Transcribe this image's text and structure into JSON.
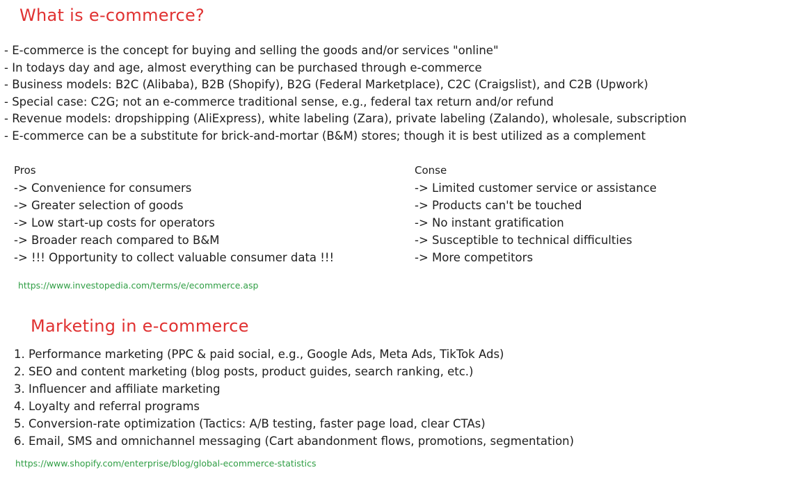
{
  "section1": {
    "title": "What is e-commerce?",
    "bullets": [
      "- E-commerce is the concept for buying and selling the goods and/or services \"online\"",
      "- In todays day and age, almost everything can be purchased through e-commerce",
      "- Business models: B2C (Alibaba), B2B (Shopify), B2G (Federal Marketplace), C2C (Craigslist), and C2B (Upwork)",
      "- Special case: C2G; not an e-commerce traditional sense, e.g., federal tax return and/or refund",
      "- Revenue models: dropshipping (AliExpress), white labeling (Zara), private labeling (Zalando), wholesale, subscription",
      "- E-commerce can be a substitute for brick-and-mortar (B&M) stores; though it is best utilized as a complement"
    ],
    "pros": {
      "title": "Pros",
      "items": [
        "-> Convenience for consumers",
        "-> Greater selection of goods",
        "-> Low start-up costs for operators",
        "-> Broader reach compared to B&M",
        "-> !!! Opportunity to collect valuable consumer data !!!"
      ]
    },
    "cons": {
      "title": "Conse",
      "items": [
        "-> Limited customer service or assistance",
        "-> Products can't be touched",
        "-> No instant gratification",
        "-> Susceptible to technical difficulties",
        "-> More competitors"
      ]
    },
    "link": "https://www.investopedia.com/terms/e/ecommerce.asp"
  },
  "section2": {
    "title": "Marketing in e-commerce",
    "items": [
      "1. Performance marketing (PPC & paid social, e.g., Google Ads, Meta Ads, TikTok Ads)",
      "2. SEO and content marketing (blog posts, product guides, search ranking, etc.)",
      "3. Influencer and affiliate marketing",
      "4. Loyalty and referral programs",
      "5. Conversion-rate optimization (Tactics: A/B testing, faster page load, clear CTAs)",
      "6. Email, SMS and omnichannel messaging (Cart abandonment flows, promotions, segmentation)"
    ],
    "link": "https://www.shopify.com/enterprise/blog/global-ecommerce-statistics"
  }
}
